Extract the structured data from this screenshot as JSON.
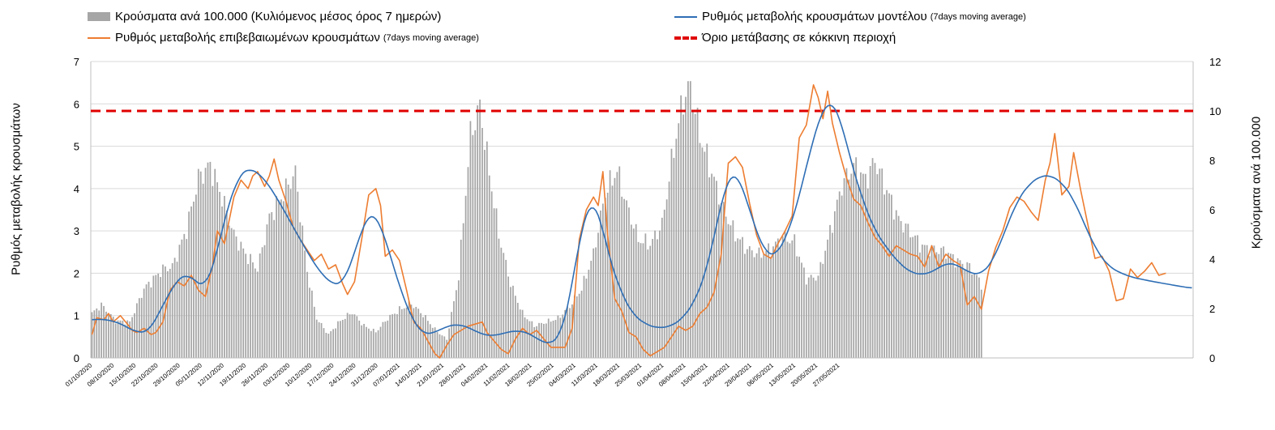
{
  "legend": {
    "bars": {
      "main": "Κρούσματα ανά 100.000 (Κυλιόμενος μέσος όρος 7 ημερών)",
      "color": "#a6a6a6"
    },
    "model": {
      "main": "Ρυθμός μεταβολής κρουσμάτων μοντέλου",
      "small": "(7days moving average)",
      "color": "#2e6eb5"
    },
    "confirmed": {
      "main": "Ρυθμός μεταβολής επιβεβαιωμένων κρουσμάτων",
      "small": "(7days moving average)",
      "color": "#ed7d31"
    },
    "threshold": {
      "main": "Όριο μετάβασης σε κόκκινη περιοχή",
      "color": "#e00000"
    }
  },
  "chart_data": {
    "type": "bar+line",
    "y_left_label": "Ρυθμός μεταβολής κρουσμάτων",
    "y_right_label": "Κρούσματα ανά 100.000",
    "y_left_range": [
      0,
      7
    ],
    "y_left_ticks": [
      "0",
      "1",
      "2",
      "3",
      "4",
      "5",
      "6",
      "7"
    ],
    "y_right_range": [
      0,
      12
    ],
    "y_right_ticks": [
      "0",
      "2",
      "4",
      "6",
      "8",
      "10",
      "12"
    ],
    "grid": true,
    "threshold_right_axis": 10,
    "x_tick_labels": [
      "01/10/2020",
      "08/10/2020",
      "15/10/2020",
      "22/10/2020",
      "29/10/2020",
      "05/11/2020",
      "12/11/2020",
      "19/11/2020",
      "26/11/2020",
      "03/12/2020",
      "10/12/2020",
      "17/12/2020",
      "24/12/2020",
      "31/12/2020",
      "07/01/2021",
      "14/01/2021",
      "21/01/2021",
      "28/01/2021",
      "04/02/2021",
      "11/02/2021",
      "18/02/2021",
      "25/02/2021",
      "04/03/2021",
      "11/03/2021",
      "18/03/2021",
      "25/03/2021",
      "01/04/2021",
      "08/04/2021",
      "15/04/2021",
      "22/04/2021",
      "29/04/2021",
      "06/05/2021",
      "13/05/2021",
      "20/05/2021",
      "27/05/2021"
    ],
    "cases_anchors": [
      [
        0,
        1.8
      ],
      [
        4,
        2.15
      ],
      [
        10,
        1.5
      ],
      [
        16,
        1.45
      ],
      [
        22,
        2.8
      ],
      [
        30,
        3.6
      ],
      [
        34,
        3.7
      ],
      [
        40,
        5.2
      ],
      [
        45,
        7.3
      ],
      [
        50,
        7.8
      ],
      [
        55,
        6.5
      ],
      [
        60,
        5.0
      ],
      [
        65,
        4.2
      ],
      [
        70,
        3.6
      ],
      [
        75,
        5.7
      ],
      [
        80,
        6.5
      ],
      [
        86,
        7.5
      ],
      [
        91,
        3.5
      ],
      [
        95,
        1.6
      ],
      [
        100,
        0.95
      ],
      [
        105,
        1.5
      ],
      [
        110,
        1.85
      ],
      [
        115,
        1.3
      ],
      [
        120,
        1.05
      ],
      [
        125,
        1.6
      ],
      [
        130,
        1.95
      ],
      [
        135,
        2.2
      ],
      [
        140,
        1.75
      ],
      [
        145,
        1.15
      ],
      [
        150,
        0.75
      ],
      [
        155,
        3.3
      ],
      [
        160,
        9.0
      ],
      [
        164,
        10.2
      ],
      [
        168,
        7.5
      ],
      [
        172,
        5.0
      ],
      [
        177,
        3.0
      ],
      [
        182,
        1.8
      ],
      [
        187,
        1.3
      ],
      [
        192,
        1.45
      ],
      [
        197,
        1.6
      ],
      [
        202,
        2.1
      ],
      [
        207,
        2.8
      ],
      [
        212,
        4.2
      ],
      [
        217,
        6.7
      ],
      [
        222,
        7.6
      ],
      [
        226,
        6.2
      ],
      [
        231,
        4.8
      ],
      [
        236,
        4.6
      ],
      [
        241,
        5.4
      ],
      [
        246,
        8.5
      ],
      [
        250,
        10.5
      ],
      [
        253,
        11.0
      ],
      [
        257,
        9.0
      ],
      [
        262,
        7.5
      ],
      [
        267,
        6.0
      ],
      [
        272,
        5.0
      ],
      [
        277,
        4.4
      ],
      [
        282,
        4.2
      ],
      [
        287,
        4.4
      ],
      [
        292,
        4.9
      ],
      [
        297,
        4.7
      ],
      [
        302,
        3.2
      ],
      [
        307,
        3.3
      ],
      [
        312,
        5.1
      ],
      [
        317,
        7.0
      ],
      [
        322,
        7.8
      ],
      [
        327,
        7.2
      ],
      [
        331,
        8.0
      ],
      [
        336,
        6.8
      ],
      [
        341,
        5.6
      ],
      [
        346,
        5.1
      ],
      [
        351,
        4.5
      ],
      [
        356,
        4.4
      ],
      [
        361,
        4.3
      ],
      [
        366,
        3.9
      ],
      [
        371,
        3.7
      ],
      [
        376,
        3.0
      ]
    ],
    "model_rate_anchors": [
      [
        0,
        0.9
      ],
      [
        5,
        0.92
      ],
      [
        12,
        0.82
      ],
      [
        18,
        0.62
      ],
      [
        24,
        0.6
      ],
      [
        30,
        1.25
      ],
      [
        36,
        1.85
      ],
      [
        40,
        2.0
      ],
      [
        44,
        1.8
      ],
      [
        48,
        1.65
      ],
      [
        52,
        2.3
      ],
      [
        57,
        3.5
      ],
      [
        62,
        4.3
      ],
      [
        66,
        4.5
      ],
      [
        72,
        4.3
      ],
      [
        78,
        3.8
      ],
      [
        84,
        3.2
      ],
      [
        90,
        2.6
      ],
      [
        96,
        2.05
      ],
      [
        102,
        1.72
      ],
      [
        106,
        1.75
      ],
      [
        110,
        2.3
      ],
      [
        115,
        3.2
      ],
      [
        118,
        3.45
      ],
      [
        121,
        3.3
      ],
      [
        126,
        2.45
      ],
      [
        131,
        1.5
      ],
      [
        136,
        0.85
      ],
      [
        140,
        0.55
      ],
      [
        145,
        0.6
      ],
      [
        150,
        0.75
      ],
      [
        155,
        0.8
      ],
      [
        160,
        0.7
      ],
      [
        165,
        0.55
      ],
      [
        170,
        0.52
      ],
      [
        175,
        0.6
      ],
      [
        180,
        0.65
      ],
      [
        185,
        0.58
      ],
      [
        190,
        0.38
      ],
      [
        194,
        0.33
      ],
      [
        198,
        0.5
      ],
      [
        202,
        1.4
      ],
      [
        207,
        3.1
      ],
      [
        211,
        3.75
      ],
      [
        214,
        3.5
      ],
      [
        219,
        2.3
      ],
      [
        224,
        1.5
      ],
      [
        229,
        1.0
      ],
      [
        234,
        0.8
      ],
      [
        239,
        0.7
      ],
      [
        245,
        0.75
      ],
      [
        250,
        0.95
      ],
      [
        255,
        1.35
      ],
      [
        260,
        2.1
      ],
      [
        265,
        3.4
      ],
      [
        269,
        4.3
      ],
      [
        272,
        4.4
      ],
      [
        276,
        3.9
      ],
      [
        280,
        3.1
      ],
      [
        285,
        2.45
      ],
      [
        289,
        2.4
      ],
      [
        294,
        2.9
      ],
      [
        299,
        3.8
      ],
      [
        304,
        5.0
      ],
      [
        309,
        5.9
      ],
      [
        312,
        6.1
      ],
      [
        316,
        5.75
      ],
      [
        321,
        4.6
      ],
      [
        326,
        3.7
      ],
      [
        331,
        3.0
      ],
      [
        336,
        2.6
      ],
      [
        341,
        2.25
      ],
      [
        346,
        2.02
      ],
      [
        351,
        1.96
      ],
      [
        356,
        2.05
      ],
      [
        361,
        2.25
      ],
      [
        366,
        2.2
      ],
      [
        371,
        2.0
      ],
      [
        376,
        1.97
      ],
      [
        381,
        2.3
      ],
      [
        386,
        3.0
      ],
      [
        391,
        3.7
      ],
      [
        396,
        4.1
      ],
      [
        401,
        4.3
      ],
      [
        405,
        4.32
      ],
      [
        410,
        4.15
      ],
      [
        415,
        3.75
      ],
      [
        420,
        3.1
      ],
      [
        425,
        2.5
      ],
      [
        430,
        2.15
      ],
      [
        435,
        2.0
      ],
      [
        440,
        1.9
      ],
      [
        447,
        1.82
      ],
      [
        454,
        1.75
      ],
      [
        461,
        1.68
      ],
      [
        465,
        1.65
      ]
    ],
    "confirmed_rate_anchors": [
      [
        0,
        0.55
      ],
      [
        2,
        0.95
      ],
      [
        5,
        0.9
      ],
      [
        7,
        1.05
      ],
      [
        9,
        0.85
      ],
      [
        12,
        1.0
      ],
      [
        15,
        0.8
      ],
      [
        17,
        0.65
      ],
      [
        19,
        0.6
      ],
      [
        22,
        0.7
      ],
      [
        25,
        0.55
      ],
      [
        27,
        0.6
      ],
      [
        30,
        0.85
      ],
      [
        33,
        1.6
      ],
      [
        36,
        1.8
      ],
      [
        39,
        1.7
      ],
      [
        42,
        1.95
      ],
      [
        45,
        1.6
      ],
      [
        48,
        1.45
      ],
      [
        51,
        2.2
      ],
      [
        53,
        3.0
      ],
      [
        56,
        2.7
      ],
      [
        60,
        3.8
      ],
      [
        63,
        4.2
      ],
      [
        66,
        4.0
      ],
      [
        68,
        4.3
      ],
      [
        70,
        4.4
      ],
      [
        73,
        4.05
      ],
      [
        75,
        4.3
      ],
      [
        77,
        4.7
      ],
      [
        79,
        4.2
      ],
      [
        82,
        3.7
      ],
      [
        85,
        3.1
      ],
      [
        88,
        2.8
      ],
      [
        91,
        2.55
      ],
      [
        94,
        2.3
      ],
      [
        97,
        2.45
      ],
      [
        100,
        2.1
      ],
      [
        103,
        2.2
      ],
      [
        106,
        1.75
      ],
      [
        108,
        1.5
      ],
      [
        111,
        1.8
      ],
      [
        114,
        2.8
      ],
      [
        117,
        3.85
      ],
      [
        120,
        4.0
      ],
      [
        122,
        3.6
      ],
      [
        124,
        2.4
      ],
      [
        127,
        2.55
      ],
      [
        130,
        2.3
      ],
      [
        133,
        1.6
      ],
      [
        136,
        0.85
      ],
      [
        139,
        0.7
      ],
      [
        142,
        0.4
      ],
      [
        145,
        0.1
      ],
      [
        147,
        0.0
      ],
      [
        150,
        0.3
      ],
      [
        153,
        0.55
      ],
      [
        156,
        0.65
      ],
      [
        159,
        0.75
      ],
      [
        162,
        0.8
      ],
      [
        165,
        0.85
      ],
      [
        167,
        0.6
      ],
      [
        170,
        0.4
      ],
      [
        173,
        0.2
      ],
      [
        176,
        0.1
      ],
      [
        179,
        0.45
      ],
      [
        182,
        0.7
      ],
      [
        185,
        0.55
      ],
      [
        188,
        0.65
      ],
      [
        191,
        0.45
      ],
      [
        194,
        0.25
      ],
      [
        197,
        0.25
      ],
      [
        200,
        0.25
      ],
      [
        203,
        0.7
      ],
      [
        206,
        2.8
      ],
      [
        209,
        3.5
      ],
      [
        212,
        3.8
      ],
      [
        214,
        3.6
      ],
      [
        216,
        4.4
      ],
      [
        218,
        2.9
      ],
      [
        221,
        1.4
      ],
      [
        224,
        1.1
      ],
      [
        227,
        0.6
      ],
      [
        230,
        0.5
      ],
      [
        233,
        0.2
      ],
      [
        236,
        0.05
      ],
      [
        239,
        0.15
      ],
      [
        242,
        0.25
      ],
      [
        245,
        0.5
      ],
      [
        248,
        0.75
      ],
      [
        251,
        0.65
      ],
      [
        254,
        0.75
      ],
      [
        257,
        1.05
      ],
      [
        260,
        1.2
      ],
      [
        263,
        1.55
      ],
      [
        266,
        2.45
      ],
      [
        269,
        4.6
      ],
      [
        272,
        4.75
      ],
      [
        275,
        4.5
      ],
      [
        278,
        3.65
      ],
      [
        281,
        2.9
      ],
      [
        284,
        2.45
      ],
      [
        287,
        2.35
      ],
      [
        290,
        2.7
      ],
      [
        293,
        3.0
      ],
      [
        296,
        3.35
      ],
      [
        299,
        5.2
      ],
      [
        302,
        5.5
      ],
      [
        305,
        6.45
      ],
      [
        307,
        6.15
      ],
      [
        309,
        5.65
      ],
      [
        311,
        6.3
      ],
      [
        313,
        5.55
      ],
      [
        316,
        4.85
      ],
      [
        319,
        4.25
      ],
      [
        322,
        3.75
      ],
      [
        325,
        3.6
      ],
      [
        328,
        3.2
      ],
      [
        331,
        2.85
      ],
      [
        334,
        2.65
      ],
      [
        337,
        2.4
      ],
      [
        340,
        2.65
      ],
      [
        343,
        2.55
      ],
      [
        346,
        2.45
      ],
      [
        349,
        2.4
      ],
      [
        352,
        2.15
      ],
      [
        355,
        2.65
      ],
      [
        358,
        2.15
      ],
      [
        361,
        2.45
      ],
      [
        364,
        2.3
      ],
      [
        367,
        2.2
      ],
      [
        370,
        1.25
      ],
      [
        373,
        1.45
      ],
      [
        376,
        1.15
      ],
      [
        379,
        2.05
      ],
      [
        382,
        2.6
      ],
      [
        385,
        3.0
      ],
      [
        388,
        3.55
      ],
      [
        391,
        3.8
      ],
      [
        394,
        3.7
      ],
      [
        397,
        3.45
      ],
      [
        400,
        3.25
      ],
      [
        403,
        4.2
      ],
      [
        405,
        4.6
      ],
      [
        407,
        5.3
      ],
      [
        410,
        3.85
      ],
      [
        413,
        4.05
      ],
      [
        415,
        4.85
      ],
      [
        418,
        3.95
      ],
      [
        421,
        3.15
      ],
      [
        424,
        2.35
      ],
      [
        427,
        2.4
      ],
      [
        430,
        2.05
      ],
      [
        433,
        1.35
      ],
      [
        436,
        1.4
      ],
      [
        439,
        2.1
      ],
      [
        442,
        1.9
      ],
      [
        445,
        2.05
      ],
      [
        448,
        2.25
      ],
      [
        451,
        1.95
      ],
      [
        454,
        2.0
      ]
    ]
  }
}
